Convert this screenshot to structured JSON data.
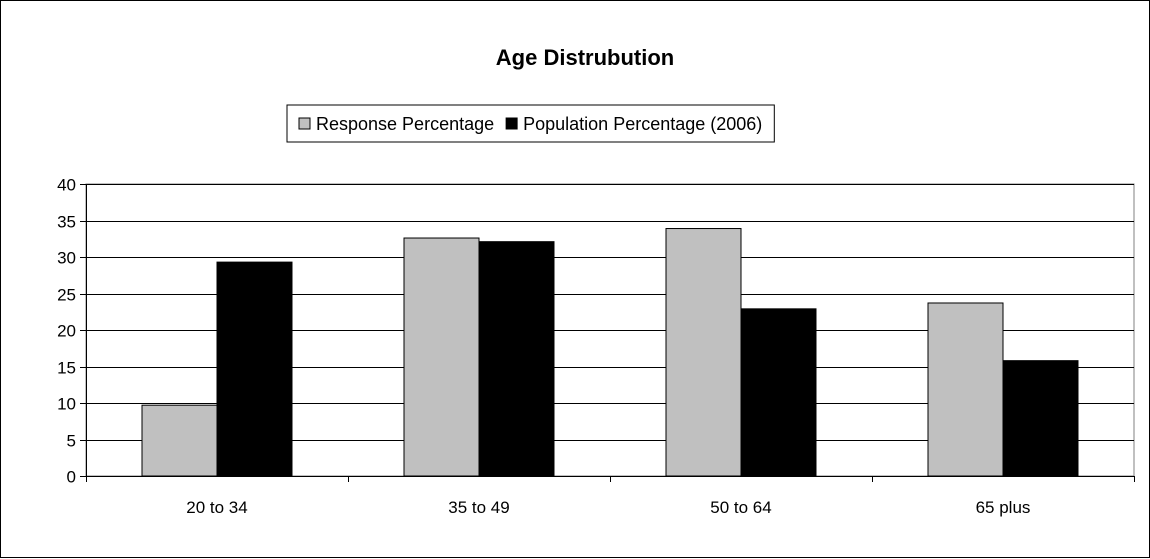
{
  "chart_data": {
    "type": "bar",
    "title": "Age Distrubution",
    "categories": [
      "20 to 34",
      "35 to 49",
      "50 to 64",
      "65 plus"
    ],
    "series": [
      {
        "name": "Response Percentage",
        "color": "#c0c0c0",
        "values": [
          9.7,
          32.6,
          33.9,
          23.7
        ]
      },
      {
        "name": "Population Percentage (2006)",
        "color": "#000000",
        "values": [
          29.3,
          32.1,
          22.9,
          15.8
        ]
      }
    ],
    "ylim": [
      0,
      40
    ],
    "yticks": [
      0,
      5,
      10,
      15,
      20,
      25,
      30,
      35,
      40
    ],
    "grid": true,
    "legend_position": "top"
  }
}
